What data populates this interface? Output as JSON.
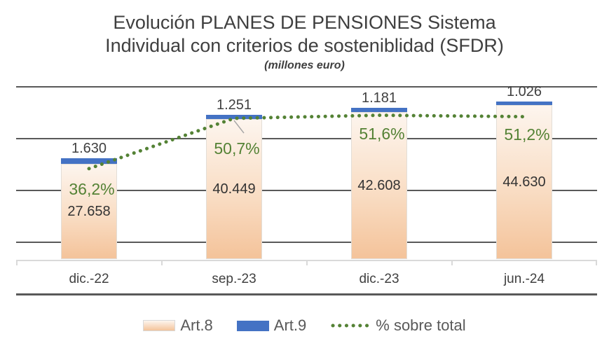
{
  "title": {
    "line1": "Evolución PLANES DE PENSIONES Sistema",
    "line2": "Individual con criterios de sosteniblidad (SFDR)",
    "subtitle": "(millones euro)"
  },
  "chart_data": {
    "type": "bar",
    "subtype": "stacked-bars-with-line",
    "title": "Evolución PLANES DE PENSIONES Sistema Individual con criterios de sosteniblidad (SFDR)",
    "units": "millones euro",
    "categories": [
      "dic.-22",
      "sep.-23",
      "dic.-23",
      "jun.-24"
    ],
    "series": [
      {
        "name": "Art.8",
        "type": "bar",
        "values": [
          27658,
          40449,
          42608,
          44630
        ],
        "labels": [
          "27.658",
          "40.449",
          "42.608",
          "44.630"
        ],
        "color_top": "#fdf5ee",
        "color_bottom": "#f4c39a"
      },
      {
        "name": "Art.9",
        "type": "bar",
        "values": [
          1630,
          1251,
          1181,
          1026
        ],
        "labels": [
          "1.630",
          "1.251",
          "1.181",
          "1.026"
        ],
        "color": "#4472c4"
      },
      {
        "name": "% sobre total",
        "type": "line",
        "style": "dotted",
        "values": [
          36.2,
          50.7,
          51.6,
          51.2
        ],
        "labels": [
          "36,2%",
          "50,7%",
          "51,6%",
          "51,2%"
        ],
        "color": "#548235"
      }
    ],
    "value_axis": {
      "min": -10000,
      "max": 50000,
      "major_unit": 15000,
      "labels_visible": false,
      "grid": true
    },
    "secondary_axis": {
      "min": 0,
      "max": 60,
      "labels_visible": false
    },
    "legend_position": "bottom",
    "colors": {
      "gridline": "#595959",
      "category_axis": "#d9d9d9",
      "label_text": "#404040",
      "pct_text": "#548235",
      "legend_text": "#595959"
    }
  }
}
